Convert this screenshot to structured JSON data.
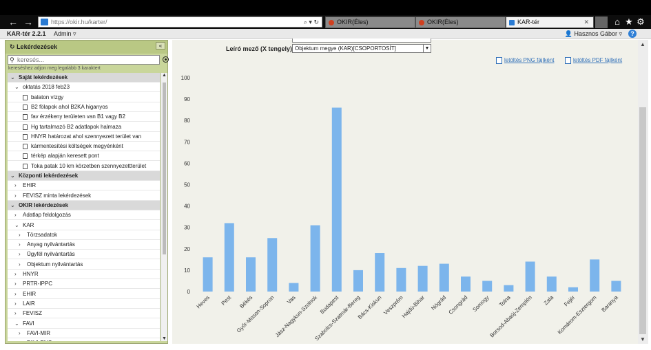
{
  "browser": {
    "url": "https://okir.hu/karter/",
    "tabs": [
      {
        "label": "OKIR(Éles)",
        "active": false,
        "icon_color": "#d04020"
      },
      {
        "label": "OKIR(Éles)",
        "active": false,
        "icon_color": "#d04020"
      },
      {
        "label": "KAR-tér",
        "active": true,
        "icon_color": "#2a7bd3"
      }
    ]
  },
  "app": {
    "title": "KAR-tér 2.2.1",
    "admin_label": "Admin ▿",
    "user_label": "Hasznos Gábor ▿",
    "help": "?"
  },
  "sidebar": {
    "title": "Lekérdezések",
    "collapse": "«",
    "search_placeholder": "keresés...",
    "search_hint": "kereséshez adjon meg legalább 3 karaktert",
    "rows": [
      {
        "label": "Saját lekérdezések",
        "type": "section",
        "chev": "v",
        "indent": 0
      },
      {
        "label": "oktatás 2018 feb23",
        "type": "folder",
        "chev": "v",
        "indent": 1
      },
      {
        "label": "balaton vízgy",
        "type": "doc",
        "indent": 2
      },
      {
        "label": "B2 fölapok ahol B2KA higanyos",
        "type": "doc",
        "indent": 2
      },
      {
        "label": "fav érzékeny területen van B1 vagy B2",
        "type": "doc",
        "indent": 2
      },
      {
        "label": "Hg tartalmazó B2 adatlapok halmaza",
        "type": "doc",
        "indent": 2
      },
      {
        "label": "HNYR határozat ahol szennyezett terület van",
        "type": "doc",
        "indent": 2
      },
      {
        "label": "kármentesítési költségek megyénként",
        "type": "doc",
        "indent": 2
      },
      {
        "label": "térkép alapján keresett pont",
        "type": "doc",
        "indent": 2
      },
      {
        "label": "Toka patak 10 km körzetben szennyezettterület",
        "type": "doc",
        "indent": 2
      },
      {
        "label": "Központi lekérdezések",
        "type": "section",
        "chev": "v",
        "indent": 0
      },
      {
        "label": "EHIR",
        "type": "folder",
        "chev": ">",
        "indent": 1
      },
      {
        "label": "FEVISZ minta lekérdezések",
        "type": "folder",
        "chev": ">",
        "indent": 1
      },
      {
        "label": "OKIR lekérdezések",
        "type": "section",
        "chev": "v",
        "indent": 0
      },
      {
        "label": "Adatlap feldolgozás",
        "type": "folder",
        "chev": ">",
        "indent": 1
      },
      {
        "label": "KAR",
        "type": "folder",
        "chev": "v",
        "indent": 1
      },
      {
        "label": "Törzsadatok",
        "type": "folder",
        "chev": ">",
        "indent": 2
      },
      {
        "label": "Anyag nyilvántartás",
        "type": "folder",
        "chev": ">",
        "indent": 2
      },
      {
        "label": "Ügyfél nyilvántartás",
        "type": "folder",
        "chev": ">",
        "indent": 2
      },
      {
        "label": "Objektum nyilvántartás",
        "type": "folder",
        "chev": ">",
        "indent": 2
      },
      {
        "label": "HNYR",
        "type": "folder",
        "chev": ">",
        "indent": 1
      },
      {
        "label": "PRTR-IPPC",
        "type": "folder",
        "chev": ">",
        "indent": 1
      },
      {
        "label": "EHIR",
        "type": "folder",
        "chev": ">",
        "indent": 1
      },
      {
        "label": "LAIR",
        "type": "folder",
        "chev": ">",
        "indent": 1
      },
      {
        "label": "FEVISZ",
        "type": "folder",
        "chev": ">",
        "indent": 1
      },
      {
        "label": "FAVI",
        "type": "folder",
        "chev": "v",
        "indent": 1
      },
      {
        "label": "FAVI-MIR",
        "type": "folder",
        "chev": ">",
        "indent": 2
      },
      {
        "label": "FAVI-ENG",
        "type": "folder",
        "chev": ">",
        "indent": 2
      }
    ]
  },
  "main": {
    "field_label": "Leíró mező (X tengely)",
    "field_value": "Objektum megye (KAR)[CSOPORTOSÍT]",
    "download_png": "letöltés PNG fájlként",
    "download_pdf": "letöltés PDF fájlként"
  },
  "chart_data": {
    "type": "bar",
    "categories": [
      "Heves",
      "Pest",
      "Békés",
      "Győr-Moson-Sopron",
      "Vas",
      "Jász-Nagykun-Szolnok",
      "Budapest",
      "Szabolcs-Szatmár-Bereg",
      "Bács-Kiskun",
      "Veszprém",
      "Hajdú-Bihar",
      "Nógrád",
      "Csongrád",
      "Somogy",
      "Tolna",
      "Borsod-Abaúj-Zemplén",
      "Zala",
      "Fejér",
      "Komárom-Esztergom",
      "Baranya"
    ],
    "values": [
      16,
      32,
      16,
      25,
      4,
      31,
      86,
      10,
      18,
      11,
      12,
      13,
      7,
      5,
      3,
      14,
      7,
      2,
      15,
      5
    ],
    "ylim": [
      0,
      100
    ],
    "yticks": [
      0,
      10,
      20,
      30,
      40,
      50,
      60,
      70,
      80,
      90,
      100
    ],
    "color": "#7cb5ec",
    "grid": false
  }
}
